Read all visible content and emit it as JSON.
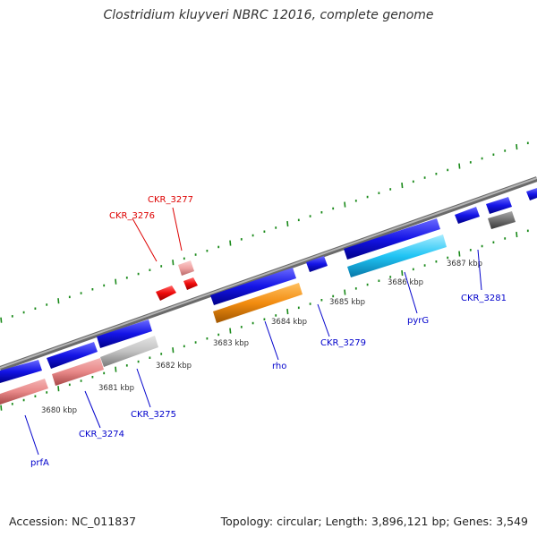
{
  "title": "Clostridium kluyveri NBRC 12016, complete genome",
  "footer": {
    "accession": "Accession: NC_011837",
    "stats": "Topology: circular; Length: 3,896,121 bp; Genes: 3,549"
  },
  "colors": {
    "backbone": "#8c8c8c",
    "tick": "#1a8a1a",
    "forward_gene": "#1010e0",
    "label_blue": "#0000cc",
    "label_red": "#dd0000"
  },
  "kbp_labels": [
    "3680 kbp",
    "3681 kbp",
    "3682 kbp",
    "3683 kbp",
    "3684 kbp",
    "3685 kbp",
    "3686 kbp",
    "3687 kbp"
  ],
  "gene_labels": {
    "prfA": "prfA",
    "ckr3274": "CKR_3274",
    "ckr3275": "CKR_3275",
    "rho": "rho",
    "ckr3279": "CKR_3279",
    "pyrG": "pyrG",
    "ckr3281": "CKR_3281",
    "ckr3276": "CKR_3276",
    "ckr3277": "CKR_3277"
  }
}
